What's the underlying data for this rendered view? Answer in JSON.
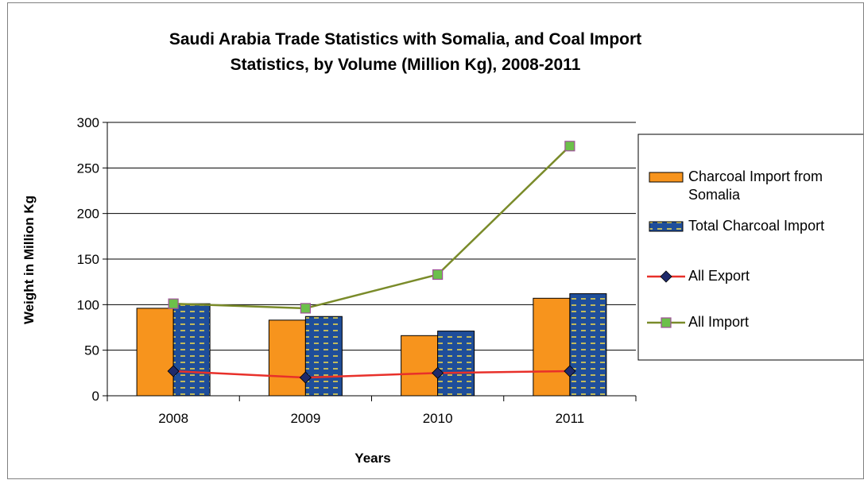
{
  "chart_data": {
    "type": "bar",
    "title_lines": [
      "Saudi Arabia Trade Statistics with Somalia, and Coal Import",
      "Statistics, by Volume (Million Kg), 2008-2011"
    ],
    "xlabel": "Years",
    "ylabel": "Weight in Million Kg",
    "categories": [
      "2008",
      "2009",
      "2010",
      "2011"
    ],
    "ylim": [
      0,
      300
    ],
    "yticks": [
      "0",
      "50",
      "100",
      "150",
      "200",
      "250",
      "300"
    ],
    "grid": "horizontal",
    "legend_position": "right",
    "series": [
      {
        "name": "Charcoal Import from Somalia",
        "name_lines": [
          "Charcoal Import from",
          "Somalia"
        ],
        "kind": "bar",
        "color": "#F7941D",
        "values": [
          96,
          83,
          66,
          107
        ]
      },
      {
        "name": "Total Charcoal Import",
        "name_lines": [
          "Total Charcoal Import"
        ],
        "kind": "bar",
        "color": "#1F4E9A",
        "pattern": "dashed-yellow",
        "values": [
          101,
          87,
          71,
          112
        ]
      },
      {
        "name": "All Export",
        "name_lines": [
          "All Export"
        ],
        "kind": "line",
        "color": "#E8302A",
        "marker": "diamond",
        "marker_color": "#1F2A6B",
        "values": [
          27,
          20,
          25,
          27
        ]
      },
      {
        "name": "All Import",
        "name_lines": [
          "All Import"
        ],
        "kind": "line",
        "color": "#7A8B2A",
        "marker": "square",
        "marker_color": "#6CC04A",
        "values": [
          101,
          96,
          133,
          274
        ]
      }
    ]
  }
}
